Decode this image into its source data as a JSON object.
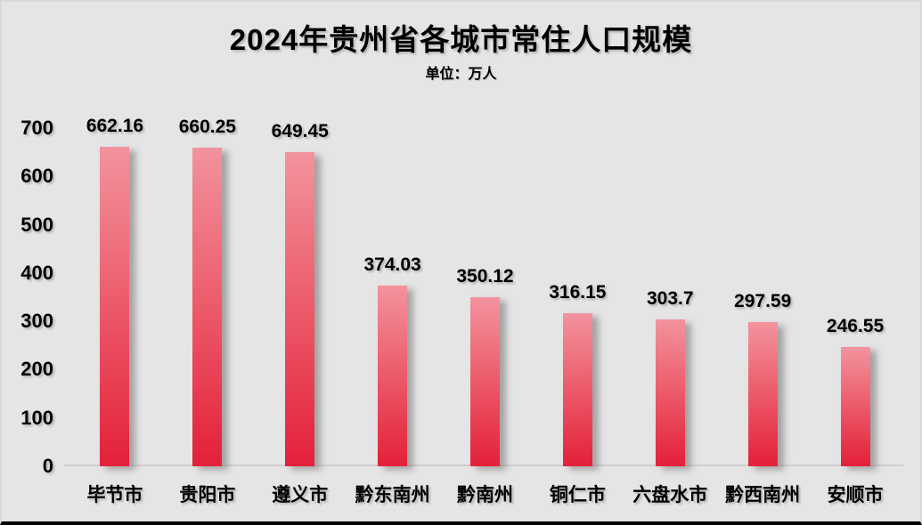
{
  "chart_data": {
    "type": "bar",
    "title": "2024年贵州省各城市常住人口规模",
    "unit_label": "单位：万人",
    "categories": [
      "毕节市",
      "贵阳市",
      "遵义市",
      "黔东南州",
      "黔南州",
      "铜仁市",
      "六盘水市",
      "黔西南州",
      "安顺市"
    ],
    "values": [
      662.16,
      660.25,
      649.45,
      374.03,
      350.12,
      316.15,
      303.7,
      297.59,
      246.55
    ],
    "value_labels": [
      "662.16",
      "660.25",
      "649.45",
      "374.03",
      "350.12",
      "316.15",
      "303.7",
      "297.59",
      "246.55"
    ],
    "xlabel": "",
    "ylabel": "",
    "ylim": [
      0,
      700
    ],
    "yticks": [
      0,
      100,
      200,
      300,
      400,
      500,
      600,
      700
    ],
    "grid": false,
    "legend": false,
    "colors": {
      "background": "#e6e5e5",
      "bar_gradient_top": "#f2939e",
      "bar_gradient_bottom": "#e3203a",
      "text": "#000000",
      "baseline": "#d2cfcf",
      "bottom_edge": "#000000"
    }
  }
}
